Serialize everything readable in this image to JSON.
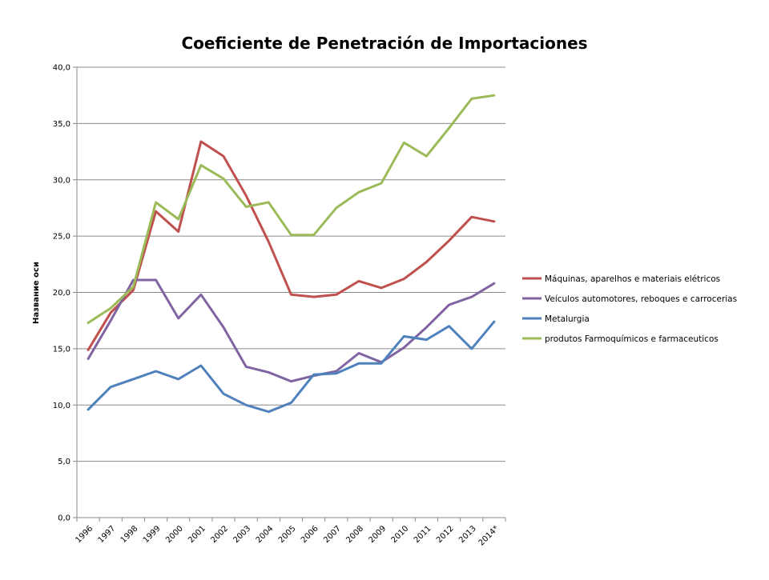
{
  "chart_data": {
    "type": "line",
    "title": "Coeficiente de Penetración de Importaciones",
    "xlabel": "",
    "ylabel": "Название оси",
    "ylim": [
      0,
      40
    ],
    "yticks": [
      "0,0",
      "5,0",
      "10,0",
      "15,0",
      "20,0",
      "25,0",
      "30,0",
      "35,0",
      "40,0"
    ],
    "grid": true,
    "legend_position": "right",
    "categories": [
      "1996",
      "1997",
      "1998",
      "1999",
      "2000",
      "2001",
      "2002",
      "2003",
      "2004",
      "2005",
      "2006",
      "2007",
      "2008",
      "2009",
      "2010",
      "2011",
      "2012",
      "2013",
      "2014*"
    ],
    "series": [
      {
        "name": "Máquinas, aparelhos e materiais elétricos",
        "color": "#C0504D",
        "values": [
          14.9,
          18.2,
          20.2,
          27.2,
          25.4,
          33.4,
          32.1,
          28.6,
          24.5,
          19.8,
          19.6,
          19.8,
          21.0,
          20.4,
          21.2,
          22.7,
          24.6,
          26.7,
          26.3
        ]
      },
      {
        "name": "Veículos automotores, reboques e carrocerias",
        "color": "#8064A2",
        "values": [
          14.1,
          17.5,
          21.1,
          21.1,
          17.7,
          19.8,
          16.9,
          13.4,
          12.9,
          12.1,
          12.6,
          13.0,
          14.6,
          13.8,
          15.1,
          16.9,
          18.9,
          19.6,
          20.8
        ]
      },
      {
        "name": "Metalurgia",
        "color": "#4F81BD",
        "values": [
          9.6,
          11.6,
          12.3,
          13.0,
          12.3,
          13.5,
          11.0,
          10.0,
          9.4,
          10.2,
          12.7,
          12.8,
          13.7,
          13.7,
          16.1,
          15.8,
          17.0,
          15.0,
          17.4
        ]
      },
      {
        "name": "produtos Farmoquímicos e farmaceuticos",
        "color": "#9BBB59",
        "values": [
          17.3,
          18.6,
          20.5,
          28.0,
          26.5,
          31.3,
          30.1,
          27.6,
          28.0,
          25.1,
          25.1,
          27.5,
          28.9,
          29.7,
          33.3,
          32.1,
          34.6,
          37.2,
          37.5
        ]
      }
    ]
  }
}
